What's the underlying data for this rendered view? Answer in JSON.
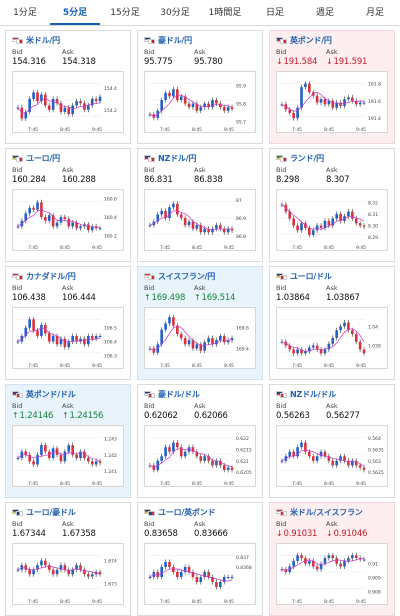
{
  "tabs": [
    {
      "label": "1分足"
    },
    {
      "label": "5分足",
      "active": true
    },
    {
      "label": "15分足"
    },
    {
      "label": "30分足"
    },
    {
      "label": "1時間足"
    },
    {
      "label": "日足"
    },
    {
      "label": "週足"
    },
    {
      "label": "月足"
    }
  ],
  "bid_label": "Bid",
  "ask_label": "Ask",
  "colors": {
    "accent": "#1560b0",
    "up": "#2060c8",
    "down": "#d8323c",
    "ma": "#cc33cc",
    "pos": "#13853a",
    "neg": "#c71a2c"
  },
  "cards": [
    {
      "pair": "米ドル/円",
      "bid": "154.316",
      "ask": "154.318",
      "trend": "none",
      "flags": [
        "us",
        "jp"
      ],
      "xticks": [
        "7:45",
        "8:45",
        "9:45"
      ],
      "yticks": [
        "154.4",
        "154.2"
      ],
      "ylim": [
        154.06,
        154.52
      ],
      "candles": [
        154.22,
        154.12,
        154.18,
        154.3,
        154.36,
        154.28,
        154.34,
        154.24,
        154.2,
        154.3,
        154.26,
        154.18,
        154.22,
        154.16,
        154.24,
        154.28,
        154.26,
        154.2,
        154.24,
        154.3,
        154.28,
        154.32
      ]
    },
    {
      "pair": "豪ドル/円",
      "bid": "95.775",
      "ask": "95.780",
      "trend": "none",
      "flags": [
        "au",
        "jp"
      ],
      "xticks": [
        "7:45",
        "8:45",
        "9:45"
      ],
      "yticks": [
        "95.9",
        "95.8",
        "95.7"
      ],
      "ylim": [
        95.68,
        95.96
      ],
      "candles": [
        95.74,
        95.72,
        95.76,
        95.82,
        95.86,
        95.84,
        95.88,
        95.82,
        95.84,
        95.8,
        95.78,
        95.8,
        95.76,
        95.78,
        95.8,
        95.78,
        95.82,
        95.8,
        95.78,
        95.76,
        95.78,
        95.77
      ]
    },
    {
      "pair": "英ポンド/円",
      "bid": "191.584",
      "ask": "191.591",
      "trend": "down",
      "flags": [
        "gb",
        "jp"
      ],
      "xticks": [
        "7:45",
        "8:45",
        "9:45"
      ],
      "yticks": [
        "191.8",
        "191.6",
        "191.4"
      ],
      "ylim": [
        191.32,
        191.9
      ],
      "candles": [
        191.56,
        191.5,
        191.46,
        191.4,
        191.52,
        191.76,
        191.8,
        191.7,
        191.66,
        191.58,
        191.62,
        191.56,
        191.6,
        191.52,
        191.58,
        191.54,
        191.62,
        191.64,
        191.6,
        191.56,
        191.58,
        191.58
      ]
    },
    {
      "pair": "ユーロ/円",
      "bid": "160.284",
      "ask": "160.288",
      "trend": "none",
      "flags": [
        "eu",
        "jp"
      ],
      "xticks": [
        "7:45",
        "8:45",
        "9:45"
      ],
      "yticks": [
        "160.6",
        "160.4",
        "160.2"
      ],
      "ylim": [
        160.12,
        160.66
      ],
      "candles": [
        160.3,
        160.36,
        160.44,
        160.5,
        160.48,
        160.56,
        160.4,
        160.36,
        160.42,
        160.3,
        160.34,
        160.4,
        160.38,
        160.3,
        160.34,
        160.28,
        160.3,
        160.32,
        160.26,
        160.3,
        160.28,
        160.28
      ]
    },
    {
      "pair": "NZドル/円",
      "bid": "86.831",
      "ask": "86.838",
      "trend": "none",
      "flags": [
        "nz",
        "jp"
      ],
      "xticks": [
        "7:45",
        "8:45",
        "9:45"
      ],
      "yticks": [
        "87",
        "86.9",
        "86.8"
      ],
      "ylim": [
        86.76,
        87.04
      ],
      "candles": [
        86.86,
        86.88,
        86.92,
        86.94,
        86.9,
        86.96,
        86.98,
        86.92,
        86.9,
        86.86,
        86.88,
        86.84,
        86.86,
        86.82,
        86.84,
        86.82,
        86.84,
        86.86,
        86.84,
        86.82,
        86.84,
        86.83
      ]
    },
    {
      "pair": "ランド/円",
      "bid": "8.298",
      "ask": "8.307",
      "trend": "none",
      "flags": [
        "za",
        "jp"
      ],
      "xticks": [
        "7:45",
        "8:45",
        "9:45"
      ],
      "yticks": [
        "8.32",
        "8.31",
        "8.30",
        "8.29"
      ],
      "ylim": [
        8.285,
        8.328
      ],
      "candles": [
        8.318,
        8.312,
        8.306,
        8.3,
        8.296,
        8.302,
        8.298,
        8.292,
        8.296,
        8.3,
        8.298,
        8.304,
        8.3,
        8.306,
        8.31,
        8.304,
        8.308,
        8.312,
        8.306,
        8.302,
        8.3,
        8.299
      ]
    },
    {
      "pair": "カナダドル/円",
      "bid": "106.438",
      "ask": "106.444",
      "trend": "none",
      "flags": [
        "ca",
        "jp"
      ],
      "xticks": [
        "7:45",
        "8:45",
        "9:45"
      ],
      "yticks": [
        "106.5",
        "106.4",
        "106.3"
      ],
      "ylim": [
        106.26,
        106.62
      ],
      "candles": [
        106.4,
        106.44,
        106.5,
        106.56,
        106.48,
        106.44,
        106.52,
        106.46,
        106.4,
        106.44,
        106.38,
        106.42,
        106.36,
        106.4,
        106.44,
        106.4,
        106.42,
        106.38,
        106.44,
        106.42,
        106.44,
        106.44
      ]
    },
    {
      "pair": "スイスフラン/円",
      "bid": "169.498",
      "ask": "169.514",
      "trend": "up",
      "flags": [
        "ch",
        "jp"
      ],
      "xticks": [
        "7:45",
        "8:45",
        "9:45"
      ],
      "yticks": [
        "169.6",
        "169.4"
      ],
      "ylim": [
        169.28,
        169.76
      ],
      "candles": [
        169.4,
        169.36,
        169.44,
        169.58,
        169.64,
        169.7,
        169.62,
        169.54,
        169.5,
        169.44,
        169.48,
        169.4,
        169.44,
        169.38,
        169.46,
        169.5,
        169.44,
        169.48,
        169.52,
        169.46,
        169.48,
        169.5
      ]
    },
    {
      "pair": "ユーロ/ドル",
      "bid": "1.03864",
      "ask": "1.03867",
      "trend": "none",
      "flags": [
        "eu",
        "us"
      ],
      "xticks": [
        "7:45",
        "8:45",
        "9:45"
      ],
      "yticks": [
        "1.04",
        "1.039"
      ],
      "ylim": [
        1.0382,
        1.0408
      ],
      "candles": [
        1.0392,
        1.039,
        1.0388,
        1.0386,
        1.0388,
        1.0386,
        1.0387,
        1.0389,
        1.039,
        1.0388,
        1.0386,
        1.0388,
        1.0391,
        1.0394,
        1.0398,
        1.04,
        1.0402,
        1.0398,
        1.0396,
        1.0392,
        1.0388,
        1.0386
      ]
    },
    {
      "pair": "英ポンド/ドル",
      "bid": "1.24146",
      "ask": "1.24156",
      "trend": "up",
      "flags": [
        "gb",
        "us"
      ],
      "xticks": [
        "7:45",
        "8:45",
        "9:45"
      ],
      "yticks": [
        "1.243",
        "1.242",
        "1.241"
      ],
      "ylim": [
        1.2405,
        1.2436
      ],
      "candles": [
        1.2418,
        1.2422,
        1.242,
        1.2416,
        1.2414,
        1.242,
        1.2426,
        1.2422,
        1.2418,
        1.2424,
        1.242,
        1.2416,
        1.2422,
        1.2426,
        1.242,
        1.2418,
        1.2422,
        1.2418,
        1.2416,
        1.2414,
        1.2416,
        1.2415
      ]
    },
    {
      "pair": "豪ドル/ドル",
      "bid": "0.62062",
      "ask": "0.62066",
      "trend": "none",
      "flags": [
        "au",
        "us"
      ],
      "xticks": [
        "7:45",
        "8:45",
        "9:45"
      ],
      "yticks": [
        "0.622",
        "0.6215",
        "0.621",
        "0.6205"
      ],
      "ylim": [
        0.6202,
        0.6224
      ],
      "candles": [
        0.6208,
        0.6206,
        0.621,
        0.6212,
        0.6216,
        0.6214,
        0.6218,
        0.6216,
        0.6212,
        0.6214,
        0.6216,
        0.6214,
        0.6212,
        0.621,
        0.6212,
        0.621,
        0.6208,
        0.621,
        0.6208,
        0.6206,
        0.6207,
        0.6206
      ]
    },
    {
      "pair": "NZドル/ドル",
      "bid": "0.56263",
      "ask": "0.56277",
      "trend": "none",
      "flags": [
        "nz",
        "us"
      ],
      "xticks": [
        "7:45",
        "8:45",
        "9:45"
      ],
      "yticks": [
        "0.564",
        "0.5635",
        "0.563",
        "0.5625"
      ],
      "ylim": [
        0.5622,
        0.5644
      ],
      "candles": [
        0.563,
        0.5632,
        0.5634,
        0.5632,
        0.5636,
        0.5638,
        0.5634,
        0.5632,
        0.563,
        0.5632,
        0.5634,
        0.5632,
        0.563,
        0.5628,
        0.563,
        0.5632,
        0.563,
        0.5628,
        0.563,
        0.5628,
        0.5627,
        0.5626
      ]
    },
    {
      "pair": "ユーロ/豪ドル",
      "bid": "1.67344",
      "ask": "1.67358",
      "trend": "none",
      "flags": [
        "eu",
        "au"
      ],
      "xticks": [
        "7:45",
        "8:45",
        "9:45"
      ],
      "yticks": [
        "1.674",
        "1.673"
      ],
      "ylim": [
        1.6724,
        1.6746
      ],
      "candles": [
        1.6736,
        1.6738,
        1.6736,
        1.6734,
        1.6736,
        1.6738,
        1.674,
        1.6738,
        1.6736,
        1.6734,
        1.6736,
        1.6738,
        1.6736,
        1.6734,
        1.6736,
        1.6738,
        1.6736,
        1.6734,
        1.6733,
        1.6734,
        1.6735,
        1.6734
      ]
    },
    {
      "pair": "ユーロ/英ポンド",
      "bid": "0.83658",
      "ask": "0.83666",
      "trend": "none",
      "flags": [
        "eu",
        "gb"
      ],
      "xticks": [
        "7:45",
        "8:45",
        "9:45"
      ],
      "yticks": [
        "0.837",
        "0.8368"
      ],
      "ylim": [
        0.8362,
        0.8372
      ],
      "candles": [
        0.8366,
        0.8367,
        0.8366,
        0.8368,
        0.8369,
        0.8368,
        0.8367,
        0.8366,
        0.8367,
        0.8368,
        0.8367,
        0.8366,
        0.8365,
        0.8366,
        0.8367,
        0.8366,
        0.8365,
        0.8364,
        0.8365,
        0.8366,
        0.8366,
        0.8366
      ]
    },
    {
      "pair": "米ドル/スイスフラン",
      "bid": "0.91031",
      "ask": "0.91046",
      "trend": "down",
      "flags": [
        "us",
        "ch"
      ],
      "xticks": [
        "7:45",
        "8:45",
        "9:45"
      ],
      "yticks": [
        "0.91",
        "0.909",
        "0.908"
      ],
      "ylim": [
        0.9076,
        0.9112
      ],
      "candles": [
        0.9096,
        0.9094,
        0.9098,
        0.9102,
        0.9106,
        0.9104,
        0.91,
        0.9102,
        0.9098,
        0.9096,
        0.91,
        0.9104,
        0.9106,
        0.9104,
        0.91,
        0.9098,
        0.9102,
        0.9104,
        0.9106,
        0.9104,
        0.9103,
        0.9103
      ]
    }
  ]
}
